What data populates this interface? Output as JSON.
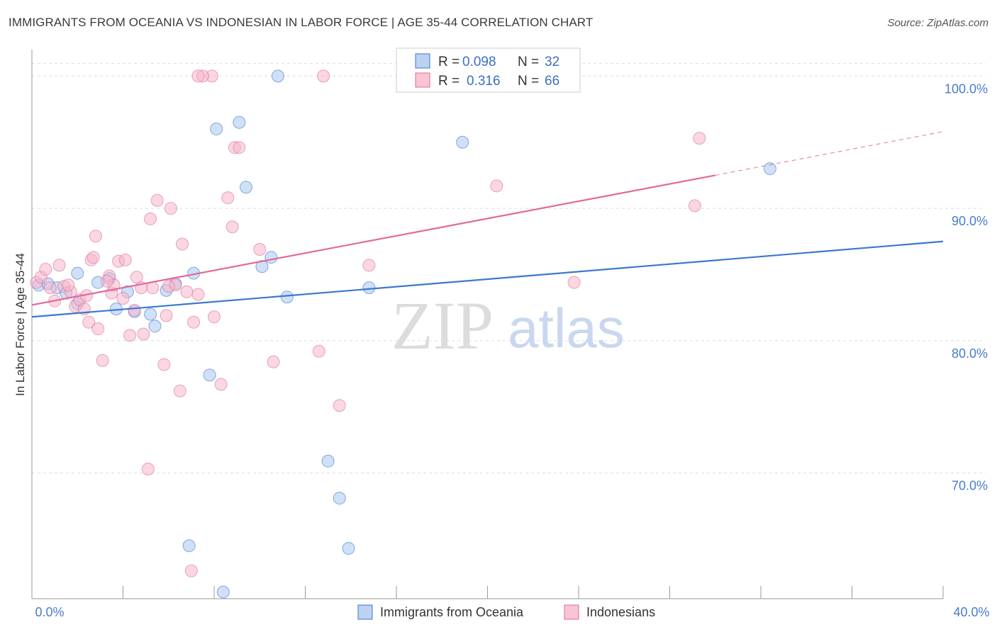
{
  "title": "IMMIGRANTS FROM OCEANIA VS INDONESIAN IN LABOR FORCE | AGE 35-44 CORRELATION CHART",
  "source": "Source: ZipAtlas.com",
  "watermark": {
    "zip": "ZIP",
    "atlas": "atlas"
  },
  "colors": {
    "blue": "#3b78d0",
    "blue_fill": "#aac7ee",
    "pink": "#e06a97",
    "pink_fill": "#f5b6cb",
    "tick_label": "#4a7cc9",
    "grid": "#dddddd"
  },
  "legend": {
    "r_label": "R =",
    "n_label": "N =",
    "blue": {
      "r": "0.098",
      "n": "32"
    },
    "pink": {
      "r": "0.316",
      "n": "66"
    }
  },
  "bottom_legend": {
    "blue": "Immigrants from Oceania",
    "pink": "Indonesians"
  },
  "chart_data": {
    "type": "scatter",
    "xlabel": "",
    "ylabel": "In Labor Force | Age 35-44",
    "xlim": [
      0,
      40
    ],
    "ylim": [
      60.5,
      102
    ],
    "x_tick_labels": [
      {
        "value": 0,
        "label": "0.0%"
      },
      {
        "value": 40,
        "label": "40.0%"
      }
    ],
    "y_tick_labels": [
      {
        "value": 70,
        "label": "70.0%"
      },
      {
        "value": 80,
        "label": "80.0%"
      },
      {
        "value": 90,
        "label": "90.0%"
      },
      {
        "value": 100,
        "label": "100.0%"
      }
    ],
    "grid": true,
    "legend_position": "top-center",
    "series": [
      {
        "name": "Immigrants from Oceania",
        "color": "#3b78d0",
        "r": 0.098,
        "n": 32,
        "trend": {
          "x": [
            0,
            40
          ],
          "y": [
            81.8,
            87.5
          ]
        },
        "points": [
          [
            0.3,
            84.2
          ],
          [
            0.7,
            84.3
          ],
          [
            1.1,
            84.0
          ],
          [
            1.5,
            83.6
          ],
          [
            2.0,
            82.8
          ],
          [
            2.0,
            85.1
          ],
          [
            2.9,
            84.4
          ],
          [
            3.4,
            84.7
          ],
          [
            3.7,
            82.4
          ],
          [
            4.2,
            83.7
          ],
          [
            4.5,
            82.2
          ],
          [
            5.2,
            82.0
          ],
          [
            5.4,
            81.1
          ],
          [
            5.9,
            83.8
          ],
          [
            6.3,
            84.3
          ],
          [
            7.1,
            85.1
          ],
          [
            7.8,
            77.4
          ],
          [
            8.1,
            96.0
          ],
          [
            8.4,
            61.0
          ],
          [
            9.1,
            96.5
          ],
          [
            9.4,
            91.6
          ],
          [
            10.1,
            85.6
          ],
          [
            10.5,
            86.3
          ],
          [
            10.8,
            100.0
          ],
          [
            11.2,
            83.3
          ],
          [
            6.9,
            64.5
          ],
          [
            13.0,
            70.9
          ],
          [
            13.5,
            68.1
          ],
          [
            13.9,
            64.3
          ],
          [
            14.8,
            84.0
          ],
          [
            18.9,
            95.0
          ],
          [
            32.4,
            93.0
          ]
        ]
      },
      {
        "name": "Indonesians",
        "color": "#e06a97",
        "r": 0.316,
        "n": 66,
        "trend": {
          "x": [
            0,
            30.0
          ],
          "y": [
            82.7,
            92.5
          ]
        },
        "trend_dashed": {
          "x": [
            30.0,
            40
          ],
          "y": [
            92.5,
            95.8
          ]
        },
        "points": [
          [
            0.2,
            84.4
          ],
          [
            0.4,
            84.8
          ],
          [
            0.6,
            85.4
          ],
          [
            0.8,
            84.0
          ],
          [
            1.0,
            83.0
          ],
          [
            1.2,
            85.7
          ],
          [
            1.4,
            84.1
          ],
          [
            1.7,
            83.7
          ],
          [
            1.9,
            82.6
          ],
          [
            2.1,
            83.1
          ],
          [
            2.3,
            82.4
          ],
          [
            2.4,
            83.4
          ],
          [
            2.5,
            81.4
          ],
          [
            2.6,
            86.1
          ],
          [
            2.7,
            86.3
          ],
          [
            2.8,
            87.9
          ],
          [
            2.9,
            80.9
          ],
          [
            3.1,
            78.5
          ],
          [
            3.4,
            84.9
          ],
          [
            3.5,
            83.6
          ],
          [
            3.6,
            84.2
          ],
          [
            3.8,
            86.0
          ],
          [
            4.0,
            83.2
          ],
          [
            4.1,
            86.1
          ],
          [
            4.3,
            80.4
          ],
          [
            4.5,
            82.3
          ],
          [
            4.6,
            84.8
          ],
          [
            4.8,
            84.0
          ],
          [
            4.9,
            80.5
          ],
          [
            5.1,
            70.3
          ],
          [
            5.2,
            89.2
          ],
          [
            5.3,
            84.0
          ],
          [
            5.5,
            90.6
          ],
          [
            5.8,
            78.2
          ],
          [
            5.9,
            81.9
          ],
          [
            6.1,
            90.0
          ],
          [
            6.3,
            84.2
          ],
          [
            6.5,
            76.2
          ],
          [
            6.6,
            87.3
          ],
          [
            6.8,
            83.7
          ],
          [
            7.0,
            62.6
          ],
          [
            7.1,
            81.4
          ],
          [
            7.3,
            83.5
          ],
          [
            7.9,
            100.0
          ],
          [
            8.0,
            81.8
          ],
          [
            8.3,
            76.7
          ],
          [
            8.6,
            90.8
          ],
          [
            8.8,
            88.6
          ],
          [
            8.9,
            94.6
          ],
          [
            9.1,
            94.6
          ],
          [
            7.5,
            100.0
          ],
          [
            7.3,
            100.0
          ],
          [
            10.0,
            86.9
          ],
          [
            10.6,
            78.4
          ],
          [
            12.6,
            79.2
          ],
          [
            12.8,
            100.0
          ],
          [
            13.5,
            75.1
          ],
          [
            14.8,
            85.7
          ],
          [
            20.4,
            91.7
          ],
          [
            23.8,
            84.4
          ],
          [
            29.1,
            90.2
          ],
          [
            29.3,
            95.3
          ],
          [
            18.9,
            100.0
          ],
          [
            1.6,
            84.2
          ],
          [
            3.3,
            84.5
          ],
          [
            6.0,
            84.1
          ]
        ]
      }
    ]
  }
}
